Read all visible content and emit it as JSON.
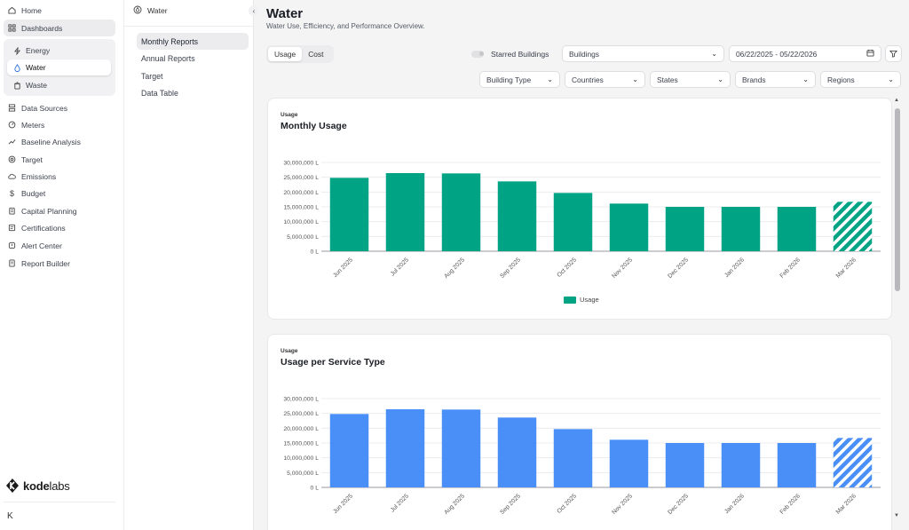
{
  "nav": {
    "home": "Home",
    "dashboards": "Dashboards",
    "sub": {
      "energy": "Energy",
      "water": "Water",
      "waste": "Waste"
    },
    "items": [
      "Data Sources",
      "Meters",
      "Baseline Analysis",
      "Target",
      "Emissions",
      "Budget",
      "Capital Planning",
      "Certifications",
      "Alert Center",
      "Report Builder"
    ],
    "logo_bold": "kode",
    "logo_light": "labs",
    "collapse": "K"
  },
  "subpanel": {
    "title": "Water",
    "items": [
      "Monthly Reports",
      "Annual Reports",
      "Target",
      "Data Table"
    ]
  },
  "page": {
    "title": "Water",
    "subtitle": "Water Use, Efficiency, and Performance Overview."
  },
  "toolbar": {
    "tabs": [
      "Usage",
      "Cost"
    ],
    "starred_label": "Starred Buildings",
    "buildings": "Buildings",
    "date_range": "06/22/2025 - 05/22/2026",
    "filters": [
      "Building Type",
      "Countries",
      "States",
      "Brands",
      "Regions"
    ]
  },
  "colors": {
    "usage": "#00a383",
    "service": "#4a8ff7"
  },
  "cards": [
    {
      "kicker": "Usage",
      "title": "Monthly Usage",
      "legend": "Usage"
    },
    {
      "kicker": "Usage",
      "title": "Usage per Service Type"
    }
  ],
  "chart_data": [
    {
      "type": "bar",
      "title": "Monthly Usage",
      "categories": [
        "Jun 2025",
        "Jul 2025",
        "Aug 2025",
        "Sep 2025",
        "Oct 2025",
        "Nov 2025",
        "Dec 2025",
        "Jan 2026",
        "Feb 2026",
        "Mar 2026"
      ],
      "series": [
        {
          "name": "Usage",
          "values": [
            24800000,
            26400000,
            26300000,
            23600000,
            19700000,
            16100000,
            15000000,
            15000000,
            15000000,
            16700000
          ]
        }
      ],
      "projected_last": true,
      "ylim": [
        0,
        30000000
      ],
      "yticks": [
        "0 L",
        "5,000,000 L",
        "10,000,000 L",
        "15,000,000 L",
        "20,000,000 L",
        "25,000,000 L",
        "30,000,000 L"
      ],
      "legend": "bottom-center"
    },
    {
      "type": "bar",
      "title": "Usage per Service Type",
      "categories": [
        "Jun 2025",
        "Jul 2025",
        "Aug 2025",
        "Sep 2025",
        "Oct 2025",
        "Nov 2025",
        "Dec 2025",
        "Jan 2026",
        "Feb 2026",
        "Mar 2026"
      ],
      "series": [
        {
          "values": [
            24800000,
            26400000,
            26300000,
            23600000,
            19700000,
            16100000,
            15000000,
            15000000,
            15000000,
            16700000
          ]
        }
      ],
      "projected_last": true,
      "ylim": [
        0,
        30000000
      ],
      "yticks": [
        "0 L",
        "5,000,000 L",
        "10,000,000 L",
        "15,000,000 L",
        "20,000,000 L",
        "25,000,000 L",
        "30,000,000 L"
      ]
    }
  ]
}
